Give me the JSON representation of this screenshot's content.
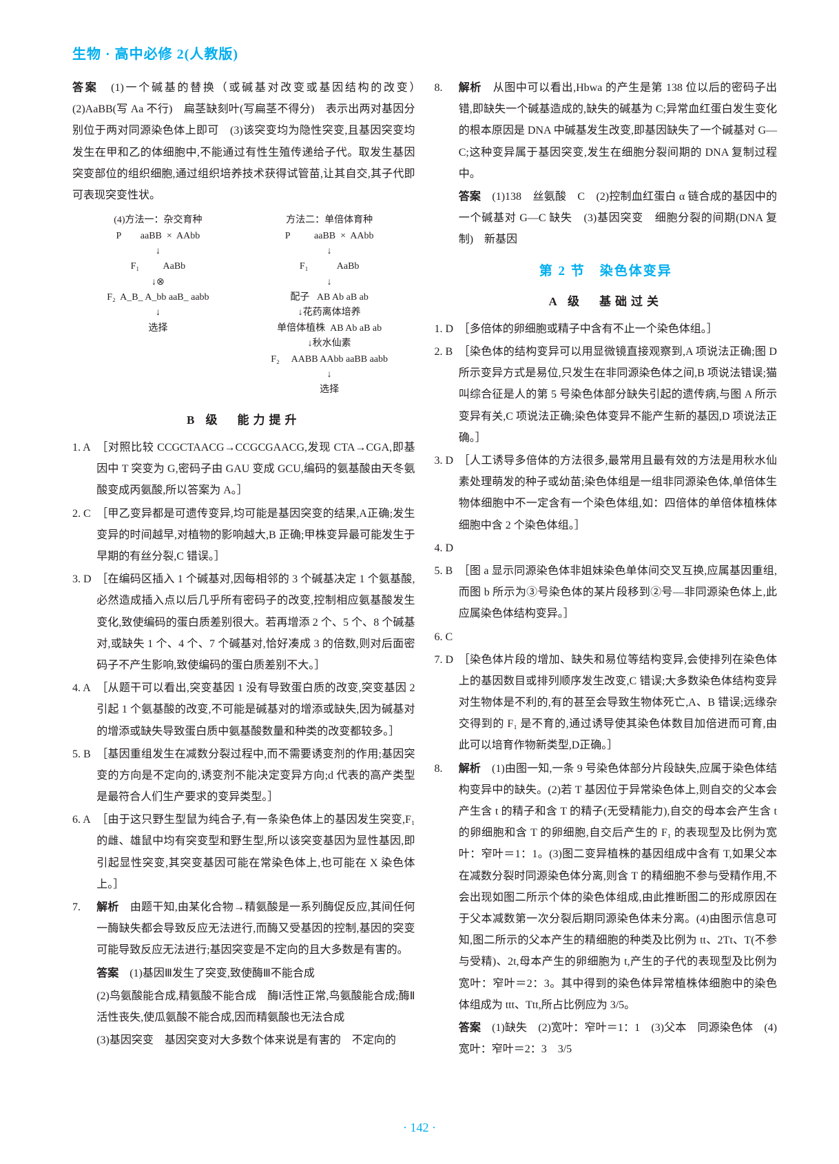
{
  "header": "生物 · 高中必修 2(人教版)",
  "page_number": "· 142 ·",
  "left": {
    "answer_prefix": "答案",
    "answer_text": "　(1)一个碱基的替换（或碱基对改变或基因结构的改变）　(2)AaBB(写 Aa 不行)　扁茎缺刻叶(写扁茎不得分)　表示出两对基因分别位于两对同源染色体上即可　(3)该突变均为隐性突变,且基因突变均发生在甲和乙的体细胞中,不能通过有性生殖传递给子代。取发生基因突变部位的组织细胞,通过组织培养技术获得试管苗,让其自交,其子代即可表现突变性状。",
    "diagram": {
      "title_left": "(4)方法一：杂交育种",
      "title_right": "方法二：单倍体育种",
      "p_left": "P        aaBB  ×  AAbb",
      "p_right": "P          aaBB  ×  AAbb",
      "arrow": "↓",
      "f1_left": "F₁          AaBb",
      "f1_right": "F₁            AaBb",
      "cross_left": "↓⊗",
      "cross_right": "↓",
      "f2_left": "F₂  A_B_ A_bb aaB_ aabb",
      "peizi": "配子   AB Ab aB ab",
      "select_left": "↓",
      "huayao": "↓花药离体培养",
      "xuanze": "选择",
      "danbei": "单倍体植株  AB Ab aB ab",
      "qiushui": "↓秋水仙素",
      "f2_right": "F₂     AABB AAbb aaBB aabb",
      "final_arrow": "↓",
      "final_select": "选择"
    },
    "level_b": "B 级　能力提升",
    "q1": {
      "num": "1. A",
      "body": "［对照比较 CCGCTAACG→CCGCGAACG,发现 CTA→CGA,即基因中 T 突变为 G,密码子由 GAU 变成 GCU,编码的氨基酸由天冬氨酸变成丙氨酸,所以答案为 A。］"
    },
    "q2": {
      "num": "2. C",
      "body": "［甲乙变异都是可遗传变异,均可能是基因突变的结果,A正确;发生变异的时间越早,对植物的影响越大,B 正确;甲株变异最可能发生于早期的有丝分裂,C 错误。］"
    },
    "q3": {
      "num": "3. D",
      "body": "［在编码区插入 1 个碱基对,因每相邻的 3 个碱基决定 1 个氨基酸,必然造成插入点以后几乎所有密码子的改变,控制相应氨基酸发生变化,致使编码的蛋白质差别很大。若再增添 2 个、5 个、8 个碱基对,或缺失 1 个、4 个、7 个碱基对,恰好凑成 3 的倍数,则对后面密码子不产生影响,致使编码的蛋白质差别不大。］"
    },
    "q4": {
      "num": "4. A",
      "body": "［从题干可以看出,突变基因 1 没有导致蛋白质的改变,突变基因 2 引起 1 个氨基酸的改变,不可能是碱基对的增添或缺失,因为碱基对的增添或缺失导致蛋白质中氨基酸数量和种类的改变都较多。］"
    },
    "q5": {
      "num": "5. B",
      "body": "［基因重组发生在减数分裂过程中,而不需要诱变剂的作用;基因突变的方向是不定向的,诱变剂不能决定变异方向;d 代表的高产类型是最符合人们生产要求的变异类型。］"
    },
    "q6": {
      "num": "6. A",
      "body": "［由于这只野生型鼠为纯合子,有一条染色体上的基因发生突变,F₁ 的雌、雄鼠中均有突变型和野生型,所以该突变基因为显性基因,即引起显性突变,其突变基因可能在常染色体上,也可能在 X 染色体上。］"
    },
    "q7": {
      "num": "7.",
      "analysis_label": "解析",
      "analysis": "　由题干知,由某化合物→精氨酸是一系列酶促反应,其间任何一酶缺失都会导致反应无法进行,而酶又受基因的控制,基因的突变可能导致反应无法进行;基因突变是不定向的且大多数是有害的。",
      "answer_label": "答案",
      "answer_1": "　(1)基因Ⅲ发生了突变,致使酶Ⅲ不能合成",
      "answer_2": "(2)鸟氨酸能合成,精氨酸不能合成　酶Ⅰ活性正常,鸟氨酸能合成;酶Ⅱ活性丧失,使瓜氨酸不能合成,因而精氨酸也无法合成",
      "answer_3": "(3)基因突变　基因突变对大多数个体来说是有害的　不定向的"
    }
  },
  "right": {
    "q8": {
      "num": "8.",
      "analysis_label": "解析",
      "analysis": "　从图中可以看出,Hbwa 的产生是第 138 位以后的密码子出错,即缺失一个碱基造成的,缺失的碱基为 C;异常血红蛋白发生变化的根本原因是 DNA 中碱基发生改变,即基因缺失了一个碱基对 G—C;这种变异属于基因突变,发生在细胞分裂间期的 DNA 复制过程中。",
      "answer_label": "答案",
      "answer": "　(1)138　丝氨酸　C　(2)控制血红蛋白 α 链合成的基因中的一个碱基对 G—C 缺失　(3)基因突变　细胞分裂的间期(DNA 复制)　新基因"
    },
    "section2_title": "第 2 节　染色体变异",
    "level_a": "A 级　基础过关",
    "r1": {
      "num": "1. D",
      "body": "［多倍体的卵细胞或精子中含有不止一个染色体组。］"
    },
    "r2": {
      "num": "2. B",
      "body": "［染色体的结构变异可以用显微镜直接观察到,A 项说法正确;图 D 所示变异方式是易位,只发生在非同源染色体之间,B 项说法错误;猫叫综合征是人的第 5 号染色体部分缺失引起的遗传病,与图 A 所示变异有关,C 项说法正确;染色体变异不能产生新的基因,D 项说法正确。］"
    },
    "r3": {
      "num": "3. D",
      "body": "［人工诱导多倍体的方法很多,最常用且最有效的方法是用秋水仙素处理萌发的种子或幼苗;染色体组是一组非同源染色体,单倍体生物体细胞中不一定含有一个染色体组,如：四倍体的单倍体植株体细胞中含 2 个染色体组。］"
    },
    "r4": {
      "num": "4. D",
      "body": ""
    },
    "r5": {
      "num": "5. B",
      "body": "［图 a 显示同源染色体非姐妹染色单体间交叉互换,应属基因重组,而图 b 所示为③号染色体的某片段移到②号—非同源染色体上,此应属染色体结构变异。］"
    },
    "r6": {
      "num": "6. C",
      "body": ""
    },
    "r7": {
      "num": "7. D",
      "body": "［染色体片段的增加、缺失和易位等结构变异,会使排列在染色体上的基因数目或排列顺序发生改变,C 错误;大多数染色体结构变异对生物体是不利的,有的甚至会导致生物体死亡,A、B 错误;远缘杂交得到的 F₁ 是不育的,通过诱导使其染色体数目加倍进而可育,由此可以培育作物新类型,D正确。］"
    },
    "r8": {
      "num": "8.",
      "analysis_label": "解析",
      "analysis": "　(1)由图一知,一条 9 号染色体部分片段缺失,应属于染色体结构变异中的缺失。(2)若 T 基因位于异常染色体上,则自交的父本会产生含 t 的精子和含 T 的精子(无受精能力),自交的母本会产生含 t 的卵细胞和含 T 的卵细胞,自交后产生的 F₁ 的表现型及比例为宽叶：窄叶＝1：1。(3)图二变异植株的基因组成中含有 T,如果父本在减数分裂时同源染色体分离,则含 T 的精细胞不参与受精作用,不会出现如图二所示个体的染色体组成,由此推断图二的形成原因在于父本减数第一次分裂后期同源染色体未分离。(4)由图示信息可知,图二所示的父本产生的精细胞的种类及比例为 tt、2Tt、T(不参与受精)、2t,母本产生的卵细胞为 t,产生的子代的表现型及比例为宽叶：窄叶＝2：3。其中得到的染色体异常植株体细胞中的染色体组成为 ttt、Ttt,所占比例应为 3/5。",
      "answer_label": "答案",
      "answer": "　(1)缺失　(2)宽叶：窄叶＝1：1　(3)父本　同源染色体　(4)宽叶：窄叶＝2：3　3/5"
    }
  }
}
